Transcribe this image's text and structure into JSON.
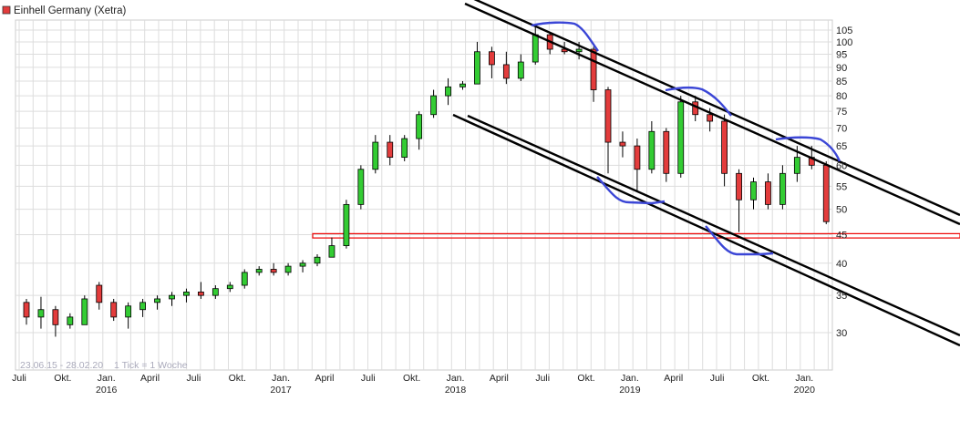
{
  "chart_data": {
    "type": "candlestick",
    "title": "Einhell Germany (Xetra)",
    "legend_color": "#e33c3c",
    "range_label": "23.06.15 - 28.02.20",
    "tick_label": "1 Tick = 1 Woche",
    "y_scale": "log",
    "ylim": [
      25,
      108
    ],
    "y_ticks": [
      30,
      35,
      40,
      45,
      50,
      55,
      60,
      65,
      70,
      75,
      80,
      85,
      90,
      95,
      100,
      105
    ],
    "x_ticks": [
      {
        "date": "2015-07",
        "label": "Juli",
        "year": ""
      },
      {
        "date": "2015-10",
        "label": "Okt.",
        "year": ""
      },
      {
        "date": "2016-01",
        "label": "Jan.",
        "year": "2016"
      },
      {
        "date": "2016-04",
        "label": "April",
        "year": ""
      },
      {
        "date": "2016-07",
        "label": "Juli",
        "year": ""
      },
      {
        "date": "2016-10",
        "label": "Okt.",
        "year": ""
      },
      {
        "date": "2017-01",
        "label": "Jan.",
        "year": "2017"
      },
      {
        "date": "2017-04",
        "label": "April",
        "year": ""
      },
      {
        "date": "2017-07",
        "label": "Juli",
        "year": ""
      },
      {
        "date": "2017-10",
        "label": "Okt.",
        "year": ""
      },
      {
        "date": "2018-01",
        "label": "Jan.",
        "year": "2018"
      },
      {
        "date": "2018-04",
        "label": "April",
        "year": ""
      },
      {
        "date": "2018-07",
        "label": "Juli",
        "year": ""
      },
      {
        "date": "2018-10",
        "label": "Okt.",
        "year": ""
      },
      {
        "date": "2019-01",
        "label": "Jan.",
        "year": "2019"
      },
      {
        "date": "2019-04",
        "label": "April",
        "year": ""
      },
      {
        "date": "2019-07",
        "label": "Juli",
        "year": ""
      },
      {
        "date": "2019-10",
        "label": "Okt.",
        "year": ""
      },
      {
        "date": "2020-01",
        "label": "Jan.",
        "year": "2020"
      }
    ],
    "up_color": "#33cc33",
    "down_color": "#e33c3c",
    "grid": true,
    "support_zone": [
      44.4,
      45.2
    ],
    "candles": [
      {
        "d": "2015-07",
        "o": 34,
        "h": 34.5,
        "l": 31,
        "c": 32
      },
      {
        "d": "2015-08",
        "o": 32,
        "h": 34.8,
        "l": 30.5,
        "c": 33
      },
      {
        "d": "2015-09",
        "o": 33,
        "h": 33.5,
        "l": 29.5,
        "c": 31
      },
      {
        "d": "2015-10",
        "o": 31,
        "h": 32.5,
        "l": 30.5,
        "c": 32
      },
      {
        "d": "2015-11",
        "o": 31,
        "h": 35,
        "l": 31,
        "c": 34.5
      },
      {
        "d": "2015-12",
        "o": 36.5,
        "h": 37,
        "l": 33,
        "c": 34
      },
      {
        "d": "2016-01",
        "o": 34,
        "h": 34.5,
        "l": 31.5,
        "c": 32
      },
      {
        "d": "2016-02",
        "o": 32,
        "h": 34,
        "l": 30.5,
        "c": 33.5
      },
      {
        "d": "2016-03",
        "o": 33,
        "h": 34.5,
        "l": 32,
        "c": 34
      },
      {
        "d": "2016-04",
        "o": 34,
        "h": 35,
        "l": 33,
        "c": 34.5
      },
      {
        "d": "2016-05",
        "o": 34.5,
        "h": 35.5,
        "l": 33.5,
        "c": 35
      },
      {
        "d": "2016-06",
        "o": 35,
        "h": 36,
        "l": 34,
        "c": 35.5
      },
      {
        "d": "2016-07",
        "o": 35.5,
        "h": 37,
        "l": 34.5,
        "c": 35
      },
      {
        "d": "2016-08",
        "o": 35,
        "h": 36.5,
        "l": 34.5,
        "c": 36
      },
      {
        "d": "2016-09",
        "o": 36,
        "h": 37,
        "l": 35.5,
        "c": 36.5
      },
      {
        "d": "2016-10",
        "o": 36.5,
        "h": 39,
        "l": 36,
        "c": 38.5
      },
      {
        "d": "2016-11",
        "o": 38.5,
        "h": 39.5,
        "l": 38,
        "c": 39
      },
      {
        "d": "2016-12",
        "o": 39,
        "h": 40,
        "l": 38,
        "c": 38.5
      },
      {
        "d": "2017-01",
        "o": 38.5,
        "h": 40,
        "l": 38,
        "c": 39.5
      },
      {
        "d": "2017-02",
        "o": 39.5,
        "h": 40.5,
        "l": 38.5,
        "c": 40
      },
      {
        "d": "2017-03",
        "o": 40,
        "h": 41.5,
        "l": 39.5,
        "c": 41
      },
      {
        "d": "2017-04",
        "o": 41,
        "h": 44.5,
        "l": 41,
        "c": 43
      },
      {
        "d": "2017-05",
        "o": 43,
        "h": 52,
        "l": 42.5,
        "c": 51
      },
      {
        "d": "2017-06",
        "o": 51,
        "h": 60,
        "l": 50,
        "c": 59
      },
      {
        "d": "2017-07",
        "o": 59,
        "h": 68,
        "l": 58,
        "c": 66
      },
      {
        "d": "2017-08",
        "o": 66,
        "h": 68,
        "l": 60,
        "c": 62
      },
      {
        "d": "2017-09",
        "o": 62,
        "h": 68,
        "l": 61,
        "c": 67
      },
      {
        "d": "2017-10",
        "o": 67,
        "h": 75,
        "l": 64,
        "c": 74
      },
      {
        "d": "2017-11",
        "o": 74,
        "h": 82,
        "l": 73,
        "c": 80
      },
      {
        "d": "2017-12",
        "o": 80,
        "h": 86,
        "l": 77,
        "c": 83
      },
      {
        "d": "2018-01",
        "o": 83,
        "h": 85,
        "l": 82,
        "c": 84
      },
      {
        "d": "2018-02",
        "o": 84,
        "h": 100,
        "l": 84,
        "c": 96
      },
      {
        "d": "2018-03",
        "o": 96,
        "h": 98,
        "l": 86,
        "c": 91
      },
      {
        "d": "2018-04",
        "o": 91,
        "h": 96,
        "l": 84,
        "c": 86
      },
      {
        "d": "2018-05",
        "o": 86,
        "h": 95,
        "l": 85,
        "c": 92
      },
      {
        "d": "2018-06",
        "o": 92,
        "h": 107,
        "l": 91,
        "c": 103
      },
      {
        "d": "2018-07",
        "o": 103,
        "h": 104,
        "l": 95,
        "c": 97
      },
      {
        "d": "2018-08",
        "o": 97,
        "h": 100,
        "l": 95,
        "c": 96
      },
      {
        "d": "2018-09",
        "o": 96,
        "h": 100,
        "l": 93,
        "c": 97
      },
      {
        "d": "2018-10",
        "o": 97,
        "h": 98,
        "l": 78,
        "c": 82
      },
      {
        "d": "2018-11",
        "o": 82,
        "h": 83,
        "l": 58,
        "c": 66
      },
      {
        "d": "2018-12",
        "o": 66,
        "h": 69,
        "l": 62,
        "c": 65
      },
      {
        "d": "2019-01",
        "o": 65,
        "h": 67,
        "l": 54,
        "c": 59
      },
      {
        "d": "2019-02",
        "o": 59,
        "h": 72,
        "l": 58,
        "c": 69
      },
      {
        "d": "2019-03",
        "o": 69,
        "h": 70,
        "l": 56,
        "c": 58
      },
      {
        "d": "2019-04",
        "o": 58,
        "h": 80,
        "l": 57,
        "c": 78
      },
      {
        "d": "2019-05",
        "o": 78,
        "h": 80,
        "l": 72,
        "c": 74
      },
      {
        "d": "2019-06",
        "o": 74,
        "h": 76,
        "l": 69,
        "c": 72
      },
      {
        "d": "2019-07",
        "o": 72,
        "h": 74,
        "l": 55,
        "c": 58
      },
      {
        "d": "2019-08",
        "o": 58,
        "h": 59,
        "l": 45.5,
        "c": 52
      },
      {
        "d": "2019-09",
        "o": 52,
        "h": 57,
        "l": 50,
        "c": 56
      },
      {
        "d": "2019-10",
        "o": 56,
        "h": 58,
        "l": 50,
        "c": 51
      },
      {
        "d": "2019-11",
        "o": 51,
        "h": 60,
        "l": 50,
        "c": 58
      },
      {
        "d": "2019-12",
        "o": 58,
        "h": 65,
        "l": 56,
        "c": 62
      },
      {
        "d": "2020-01",
        "o": 62,
        "h": 65,
        "l": 59,
        "c": 60
      },
      {
        "d": "2020-02",
        "o": 60,
        "h": 61,
        "l": 47,
        "c": 47.5
      }
    ]
  }
}
